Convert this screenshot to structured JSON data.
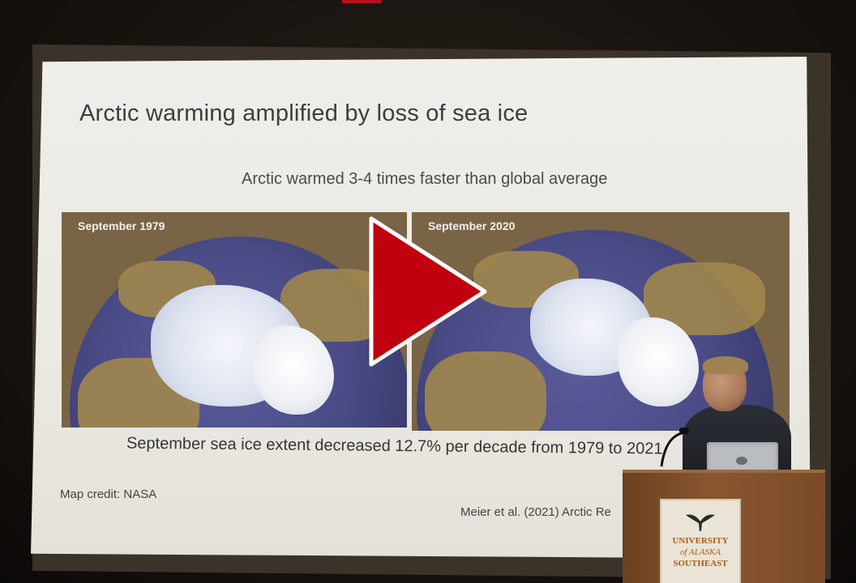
{
  "slide": {
    "title": "Arctic warming amplified by loss of sea ice",
    "subtitle": "Arctic warmed 3-4 times faster than global average",
    "panels": [
      {
        "label": "September 1979"
      },
      {
        "label": "September 2020"
      }
    ],
    "caption": "September sea ice extent decreased 12.7% per decade from 1979 to 2021",
    "credit": "Map credit: NASA",
    "citation": "Meier et al. (2021) Arctic Re"
  },
  "podium": {
    "line1": "UNIVERSITY",
    "line2": "of ALASKA",
    "line3": "SOUTHEAST"
  },
  "player": {
    "play_icon": "play-icon",
    "accent_color": "#c0000f"
  }
}
